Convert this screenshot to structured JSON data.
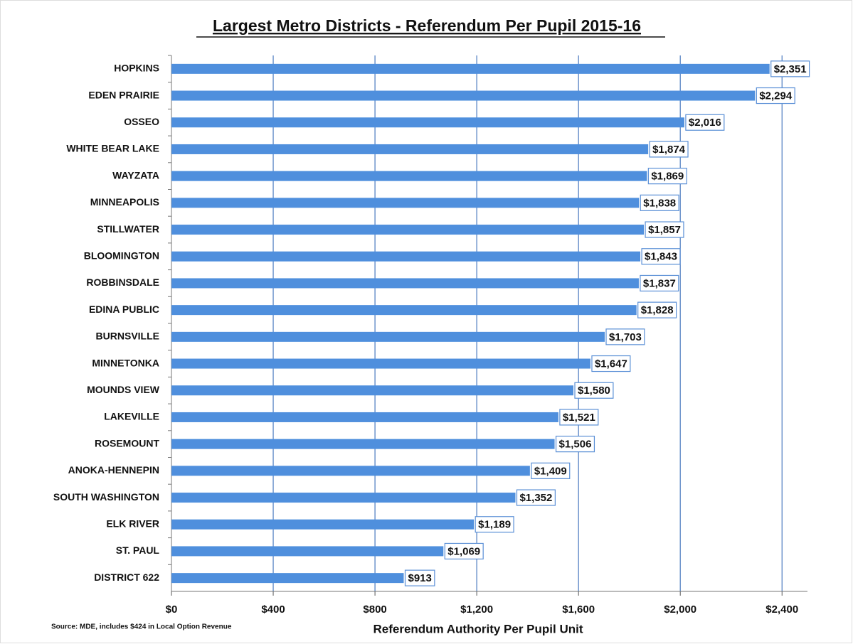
{
  "chart_data": {
    "type": "barh",
    "title": "Largest Metro Districts - Referendum Per Pupil 2015-16",
    "categories": [
      "HOPKINS",
      "EDEN PRAIRIE",
      "OSSEO",
      "WHITE BEAR LAKE",
      "WAYZATA",
      "MINNEAPOLIS",
      "STILLWATER",
      "BLOOMINGTON",
      "ROBBINSDALE",
      "EDINA PUBLIC",
      "BURNSVILLE",
      "MINNETONKA",
      "MOUNDS VIEW",
      "LAKEVILLE",
      "ROSEMOUNT",
      "ANOKA-HENNEPIN",
      "SOUTH WASHINGTON",
      "ELK RIVER",
      "ST. PAUL",
      "DISTRICT 622"
    ],
    "values": [
      2351,
      2294,
      2016,
      1874,
      1869,
      1838,
      1857,
      1843,
      1837,
      1828,
      1703,
      1647,
      1580,
      1521,
      1506,
      1409,
      1352,
      1189,
      1069,
      913
    ],
    "value_labels": [
      "$2,351",
      "$2,294",
      "$2,016",
      "$1,874",
      "$1,869",
      "$1,838",
      "$1,857",
      "$1,843",
      "$1,837",
      "$1,828",
      "$1,703",
      "$1,647",
      "$1,580",
      "$1,521",
      "$1,506",
      "$1,409",
      "$1,352",
      "$1,189",
      "$1,069",
      "$913"
    ],
    "color": "#4f8fdd",
    "xlim": [
      0,
      2500
    ],
    "xticks": [
      {
        "value": 0,
        "label": "$0"
      },
      {
        "value": 400,
        "label": "$400"
      },
      {
        "value": 800,
        "label": "$800"
      },
      {
        "value": 1200,
        "label": "$1,200"
      },
      {
        "value": 1600,
        "label": "$1,600"
      },
      {
        "value": 2000,
        "label": "$2,000"
      },
      {
        "value": 2400,
        "label": "$2,400"
      }
    ],
    "grid": true,
    "xlabel": "Referendum Authority Per Pupil Unit",
    "note": "Source: MDE, includes $424 in Local Option Revenue"
  }
}
